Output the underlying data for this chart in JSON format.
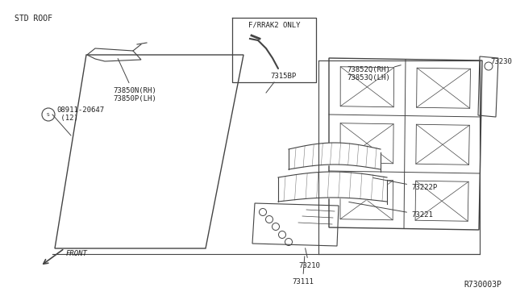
{
  "bg_color": "#ffffff",
  "std_roof_label": "STD ROOF",
  "ref_label": "R730003P",
  "front_label": "FRONT",
  "line_color": "#444444",
  "text_color": "#222222",
  "font_size": 7.0,
  "fig_w": 6.4,
  "fig_h": 3.72,
  "dpi": 100
}
